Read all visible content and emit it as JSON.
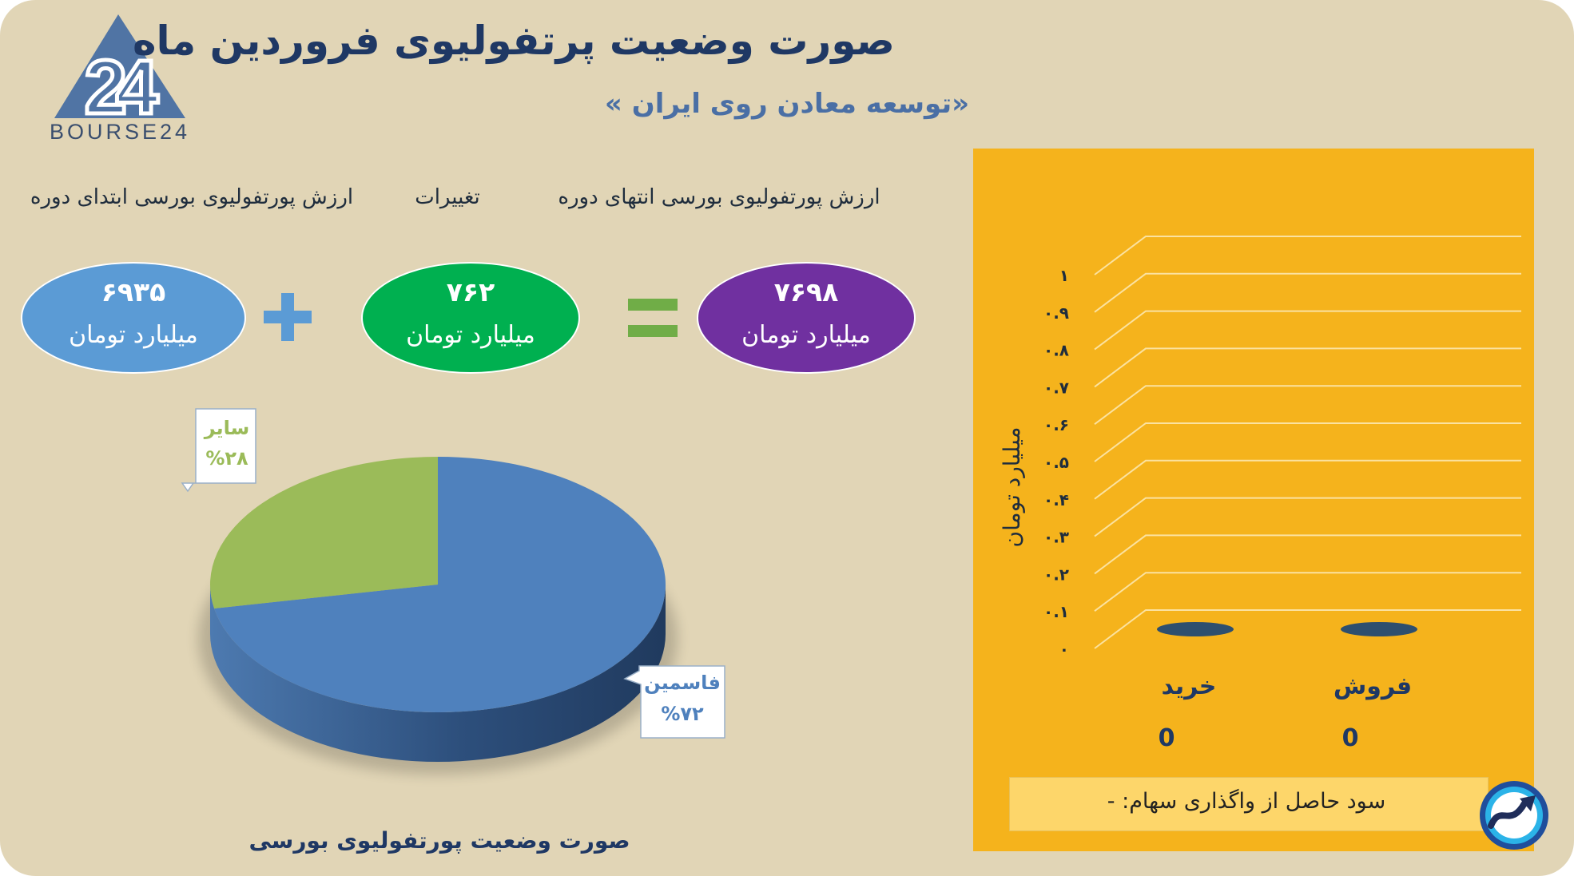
{
  "brand": {
    "logo_text": "BOURSE24",
    "logo_numeral": "24",
    "primary_color": "#1f3864",
    "logo_color": "#5074a4"
  },
  "header": {
    "title": "صورت وضعیت پرتفولیوی فروردین ماه",
    "subtitle": "«توسعه معادن روی ایران »"
  },
  "summary": {
    "end_label": "ارزش پورتفولیوی بورسی انتهای دوره",
    "change_label": "تغییرات",
    "start_label": "ارزش پورتفولیوی بورسی ابتدای دوره",
    "end_value": "۷۶۹۸",
    "change_value": "۷۶۲",
    "start_value": "۶۹۳۵",
    "unit": "میلیارد تومان",
    "colors": {
      "start": "#5b9bd5",
      "change": "#00b050",
      "end": "#7030a0",
      "plus": "#5b9bd5",
      "equal": "#70ad47"
    }
  },
  "pie_caption": "صورت وضعیت پورتفولیوی بورسی",
  "chart_data": [
    {
      "type": "pie",
      "title": "صورت وضعیت پورتفولیوی بورسی",
      "slices": [
        {
          "label": "فاسمین",
          "value": 72,
          "value_label": "%۷۲",
          "color": "#4f81bd"
        },
        {
          "label": "سایر",
          "value": 28,
          "value_label": "%۲۸",
          "color": "#9bbb59"
        }
      ],
      "style": "3d"
    },
    {
      "type": "bar",
      "categories": [
        "خرید",
        "فروش"
      ],
      "values": [
        0,
        0
      ],
      "value_labels": [
        "0",
        "0"
      ],
      "ylabel": "میلیارد تومان",
      "ylim": [
        0,
        1
      ],
      "yticks": [
        "۰",
        "۰.۱",
        "۰.۲",
        "۰.۳",
        "۰.۴",
        "۰.۵",
        "۰.۶",
        "۰.۷",
        "۰.۸",
        "۰.۹",
        "۱"
      ],
      "grid": true,
      "style": "3d",
      "bar_color": "#2e4f6e",
      "background": "#f5b31c"
    }
  ],
  "note": {
    "text": "سود حاصل از واگذاری سهام: -"
  }
}
